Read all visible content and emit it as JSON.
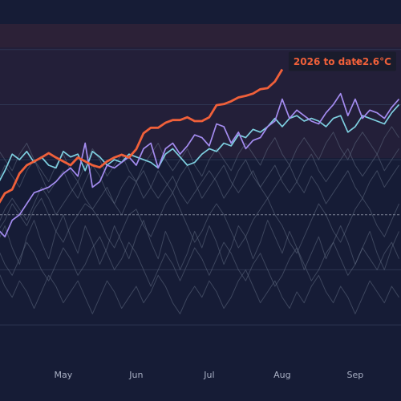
{
  "chart_data": {
    "type": "line",
    "categories": [
      null,
      null,
      null,
      null,
      null,
      null,
      null,
      null,
      null,
      "May",
      null,
      null,
      null,
      null,
      null,
      null,
      null,
      null,
      null,
      "Jun",
      null,
      null,
      null,
      null,
      null,
      null,
      null,
      null,
      null,
      "Jul",
      null,
      null,
      null,
      null,
      null,
      null,
      null,
      null,
      null,
      "Aug",
      null,
      null,
      null,
      null,
      null,
      null,
      null,
      null,
      null,
      "Sep",
      null,
      null,
      null,
      null,
      null,
      null
    ],
    "ylim": [
      -2.8,
      3.9
    ],
    "yticks": [
      -2,
      -1,
      0,
      1,
      2,
      3
    ],
    "grid": true,
    "annotation": {
      "label": "2026 to date",
      "value_label": "+2.6°C",
      "color": "#f0603a"
    },
    "series": [
      {
        "color": "#5f6a80",
        "values": [
          -0.3,
          -0.1,
          0.2,
          0.0,
          -0.2,
          0.1,
          0.3,
          0.0,
          -0.3,
          -0.5,
          -0.2,
          0.0,
          0.2,
          0.1,
          -0.1,
          -0.4,
          -0.6,
          -0.3,
          0.0,
          0.1,
          -0.2,
          -0.4,
          -0.1,
          0.2,
          0.4,
          0.1,
          -0.2,
          -0.5,
          -0.3,
          0.0,
          0.2,
          0.0,
          -0.3,
          -0.6,
          -0.4,
          -0.1,
          0.1,
          0.3,
          0.0,
          -0.2,
          -0.5,
          -0.7,
          -0.4,
          -0.1,
          0.2,
          0.0,
          -0.3,
          -0.5,
          -0.2,
          0.1,
          0.3,
          0.1,
          -0.2,
          -0.4,
          -0.1,
          0.2
        ]
      },
      {
        "color": "#5f6a80",
        "values": [
          0.6,
          0.9,
          0.7,
          0.5,
          0.8,
          1.0,
          0.7,
          0.4,
          0.6,
          0.8,
          0.5,
          0.3,
          0.6,
          0.9,
          0.7,
          0.4,
          0.2,
          0.5,
          0.7,
          0.6,
          0.3,
          0.5,
          0.8,
          0.6,
          0.4,
          0.7,
          0.9,
          0.6,
          0.3,
          0.5,
          0.7,
          0.9,
          0.6,
          0.4,
          0.6,
          0.8,
          0.5,
          0.3,
          0.5,
          0.7,
          0.9,
          0.6,
          0.4,
          0.7,
          0.5,
          0.2,
          0.4,
          0.6,
          0.8,
          0.5,
          0.3,
          0.6,
          0.8,
          0.5,
          0.7,
          0.9
        ]
      },
      {
        "color": "#5f6a80",
        "values": [
          -0.6,
          -0.9,
          -1.1,
          -0.8,
          -0.5,
          -0.7,
          -1.0,
          -1.2,
          -0.9,
          -0.6,
          -0.8,
          -1.1,
          -0.9,
          -0.6,
          -0.4,
          -0.7,
          -1.0,
          -0.8,
          -0.5,
          -0.7,
          -1.0,
          -1.3,
          -1.0,
          -0.7,
          -0.9,
          -1.2,
          -0.9,
          -0.6,
          -0.8,
          -1.1,
          -0.8,
          -0.5,
          -0.7,
          -1.0,
          -1.2,
          -0.9,
          -0.7,
          -1.0,
          -1.3,
          -1.1,
          -0.8,
          -0.6,
          -0.9,
          -1.2,
          -1.0,
          -0.7,
          -0.5,
          -0.8,
          -1.1,
          -0.9,
          -0.6,
          -0.8,
          -1.0,
          -0.7,
          -0.5,
          -0.8
        ]
      },
      {
        "color": "#5f6a80",
        "values": [
          -0.2,
          0.1,
          0.3,
          0.1,
          -0.1,
          0.2,
          0.5,
          0.3,
          0.0,
          0.2,
          0.4,
          0.6,
          0.3,
          0.1,
          0.3,
          0.5,
          0.2,
          0.0,
          0.3,
          0.6,
          0.8,
          0.5,
          0.3,
          0.5,
          0.7,
          0.4,
          0.2,
          0.4,
          0.6,
          0.8,
          0.6,
          0.3,
          0.5,
          0.8,
          1.0,
          0.7,
          0.5,
          0.7,
          0.9,
          0.6,
          0.4,
          0.6,
          0.9,
          1.1,
          0.8,
          0.6,
          0.8,
          1.0,
          1.2,
          0.9,
          0.7,
          0.9,
          1.1,
          0.8,
          1.0,
          1.2
        ]
      },
      {
        "color": "#5f6a80",
        "values": [
          -0.5,
          -0.2,
          -0.6,
          -0.9,
          -0.4,
          -0.1,
          -0.5,
          -0.8,
          -0.3,
          0.0,
          -0.4,
          -0.7,
          -0.2,
          -0.5,
          -0.9,
          -0.6,
          -0.2,
          -0.5,
          -0.8,
          -0.4,
          -0.1,
          -0.5,
          -0.8,
          -0.3,
          -0.6,
          -1.0,
          -0.7,
          -0.3,
          -0.6,
          -0.2,
          -0.5,
          -0.9,
          -0.6,
          -0.2,
          -0.4,
          -0.8,
          -0.5,
          -0.1,
          -0.4,
          -0.7,
          -0.3,
          -0.6,
          -1.0,
          -0.7,
          -0.4,
          -0.8,
          -0.5,
          -0.2,
          -0.5,
          -0.9,
          -0.6,
          -0.3,
          -0.7,
          -1.0,
          -0.6,
          -0.3
        ]
      },
      {
        "color": "#5f6a80",
        "values": [
          -1.0,
          -1.3,
          -1.5,
          -1.2,
          -1.4,
          -1.7,
          -1.4,
          -1.1,
          -1.3,
          -1.6,
          -1.4,
          -1.2,
          -1.5,
          -1.8,
          -1.5,
          -1.2,
          -1.4,
          -1.7,
          -1.5,
          -1.3,
          -1.6,
          -1.4,
          -1.1,
          -1.3,
          -1.6,
          -1.8,
          -1.5,
          -1.3,
          -1.5,
          -1.2,
          -1.4,
          -1.7,
          -1.5,
          -1.2,
          -1.0,
          -1.3,
          -1.6,
          -1.4,
          -1.2,
          -1.5,
          -1.7,
          -1.4,
          -1.6,
          -1.3,
          -1.1,
          -1.4,
          -1.6,
          -1.3,
          -1.5,
          -1.8,
          -1.5,
          -1.2,
          -1.4,
          -1.6,
          -1.3,
          -1.5
        ]
      },
      {
        "color": "#5f6a80",
        "values": [
          1.2,
          1.0,
          0.8,
          1.1,
          1.3,
          1.0,
          0.8,
          0.6,
          0.9,
          1.1,
          0.8,
          0.6,
          0.9,
          1.2,
          1.0,
          0.7,
          0.9,
          1.1,
          0.8,
          0.6,
          0.9,
          1.1,
          1.3,
          1.0,
          0.8,
          1.0,
          1.2,
          0.9,
          0.7,
          1.0,
          1.2,
          1.0,
          0.8,
          1.1,
          1.3,
          1.1,
          0.9,
          1.2,
          1.4,
          1.1,
          0.9,
          1.2,
          1.4,
          1.2,
          1.0,
          1.3,
          1.5,
          1.2,
          1.0,
          1.3,
          1.5,
          1.3,
          1.1,
          1.4,
          1.6,
          1.4
        ]
      },
      {
        "color": "#7ecfe0",
        "values": [
          0.55,
          0.8,
          1.1,
          1.0,
          1.15,
          0.95,
          1.05,
          0.9,
          0.85,
          1.15,
          1.05,
          1.1,
          0.8,
          1.15,
          1.05,
          0.9,
          1.0,
          0.95,
          1.1,
          1.05,
          1.0,
          0.95,
          0.85,
          1.1,
          1.2,
          1.05,
          0.9,
          0.95,
          1.1,
          1.2,
          1.15,
          1.3,
          1.25,
          1.45,
          1.4,
          1.55,
          1.5,
          1.6,
          1.75,
          1.6,
          1.75,
          1.8,
          1.7,
          1.75,
          1.7,
          1.6,
          1.75,
          1.8,
          1.5,
          1.6,
          1.8,
          1.75,
          1.7,
          1.65,
          1.85,
          2.0
        ]
      },
      {
        "color": "#a48cf0",
        "values": [
          -0.26,
          -0.4,
          -0.1,
          0.0,
          0.2,
          0.4,
          0.45,
          0.5,
          0.6,
          0.75,
          0.85,
          0.7,
          1.3,
          0.5,
          0.6,
          0.9,
          0.85,
          0.95,
          1.05,
          0.9,
          1.2,
          1.3,
          0.85,
          1.2,
          1.3,
          1.1,
          1.25,
          1.45,
          1.4,
          1.25,
          1.65,
          1.6,
          1.3,
          1.5,
          1.2,
          1.35,
          1.4,
          1.6,
          1.7,
          2.1,
          1.75,
          1.9,
          1.8,
          1.7,
          1.65,
          1.85,
          2.0,
          2.2,
          1.8,
          2.1,
          1.75,
          1.9,
          1.85,
          1.75,
          1.95,
          2.1
        ]
      },
      {
        "color": "#f0603a",
        "values": [
          0.17,
          0.39,
          0.46,
          0.75,
          0.9,
          0.97,
          1.04,
          1.12,
          1.04,
          0.97,
          0.9,
          1.04,
          0.97,
          0.9,
          0.86,
          0.97,
          1.04,
          1.09,
          1.04,
          1.19,
          1.48,
          1.58,
          1.58,
          1.67,
          1.72,
          1.72,
          1.77,
          1.7,
          1.7,
          1.77,
          1.99,
          2.01,
          2.06,
          2.13,
          2.16,
          2.2,
          2.28,
          2.3,
          2.42,
          2.64,
          null,
          null,
          null,
          null,
          null,
          null,
          null,
          null,
          null,
          null,
          null,
          null,
          null,
          null,
          null,
          null
        ]
      }
    ]
  }
}
